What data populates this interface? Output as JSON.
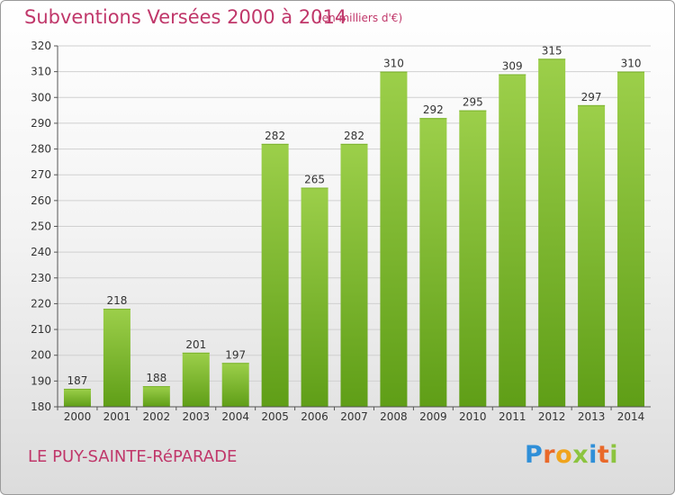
{
  "header": {
    "title": "Subventions Versées 2000 à 2014",
    "unit": "(en milliers d'€)"
  },
  "footer": {
    "commune": "LE PUY-SAINTE-RéPARADE",
    "logo_letters": [
      "P",
      "r",
      "o",
      "x",
      "i",
      "t",
      "i"
    ]
  },
  "colors": {
    "title": "#c0376a",
    "bar_top": "#9ccf4a",
    "bar_bottom": "#5f9e17",
    "grid": "#d0d0d0",
    "axis": "#555555"
  },
  "chart_data": {
    "type": "bar",
    "title": "Subventions Versées 2000 à 2014",
    "xlabel": "",
    "ylabel": "",
    "ylim": [
      180,
      320
    ],
    "ytick_step": 10,
    "grid": true,
    "categories": [
      "2000",
      "2001",
      "2002",
      "2003",
      "2004",
      "2005",
      "2006",
      "2007",
      "2008",
      "2009",
      "2010",
      "2011",
      "2012",
      "2013",
      "2014"
    ],
    "values": [
      187,
      218,
      188,
      201,
      197,
      282,
      265,
      282,
      310,
      292,
      295,
      309,
      315,
      297,
      310
    ]
  }
}
